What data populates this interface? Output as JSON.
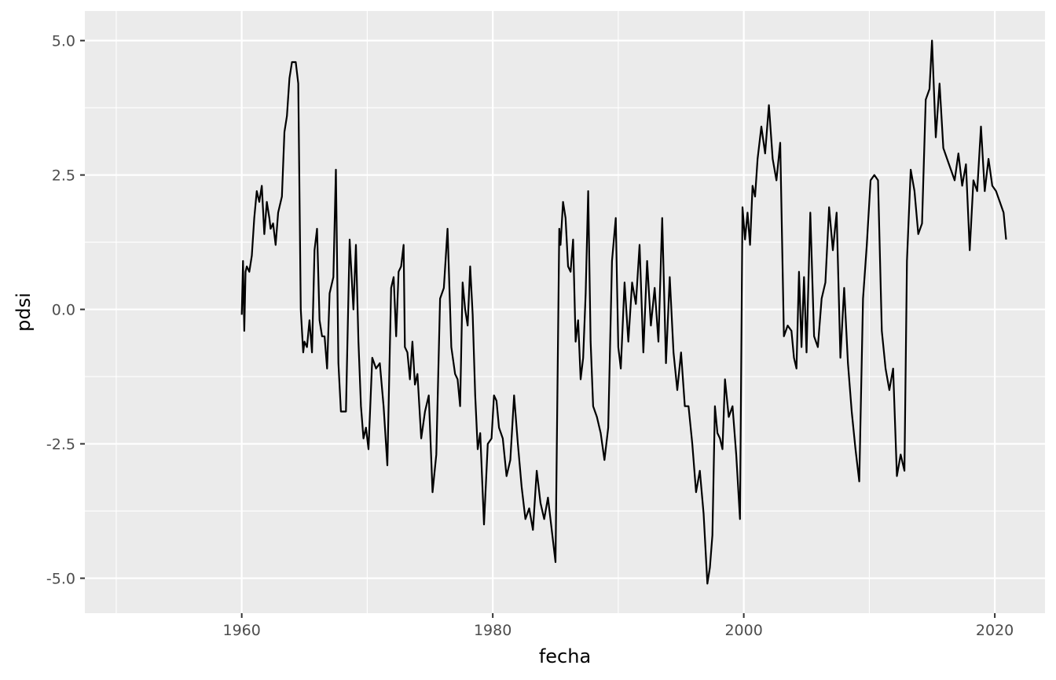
{
  "chart_data": {
    "type": "line",
    "title": "",
    "xlabel": "fecha",
    "ylabel": "pdsi",
    "xlim": [
      1947.5,
      2024.0
    ],
    "ylim": [
      -5.65,
      5.55
    ],
    "x_ticks": [
      1960,
      1980,
      2000,
      2020
    ],
    "x_minor_ticks": [
      1950,
      1970,
      1990,
      2010
    ],
    "x_tick_labels": [
      "1960",
      "1980",
      "2000",
      "2020"
    ],
    "y_ticks": [
      5.0,
      2.5,
      0.0,
      -2.5,
      -5.0
    ],
    "y_minor_ticks": [
      3.75,
      1.25,
      -1.25,
      -3.75
    ],
    "y_tick_labels": [
      "5.0",
      "2.5",
      "0.0",
      "-2.5",
      "-5.0"
    ],
    "grid": true,
    "legend": "none",
    "colors": {
      "panel": "#ebebeb",
      "grid": "#ffffff",
      "line": "#000000"
    },
    "series": [
      {
        "x": [
          1960.0,
          1960.1,
          1960.2,
          1960.3,
          1960.4,
          1960.6,
          1960.8,
          1961.0,
          1961.2,
          1961.4,
          1961.6,
          1961.8,
          1962.0,
          1962.2,
          1962.3,
          1962.5,
          1962.7,
          1962.9,
          1963.0,
          1963.2,
          1963.4,
          1963.6,
          1963.8,
          1964.0,
          1964.3,
          1964.5,
          1964.7,
          1964.9,
          1965.0,
          1965.2,
          1965.4,
          1965.6,
          1965.8,
          1966.0,
          1966.2,
          1966.4,
          1966.6,
          1966.8,
          1967.0,
          1967.3,
          1967.5,
          1967.7,
          1967.9,
          1968.0,
          1968.3,
          1968.6,
          1968.9,
          1969.1,
          1969.3,
          1969.5,
          1969.7,
          1969.9,
          1970.1,
          1970.4,
          1970.7,
          1971.0,
          1971.3,
          1971.6,
          1971.9,
          1972.1,
          1972.3,
          1972.5,
          1972.7,
          1972.9,
          1973.0,
          1973.2,
          1973.4,
          1973.6,
          1973.8,
          1974.0,
          1974.3,
          1974.6,
          1974.9,
          1975.2,
          1975.5,
          1975.8,
          1976.1,
          1976.4,
          1976.7,
          1977.0,
          1977.2,
          1977.4,
          1977.6,
          1977.8,
          1978.0,
          1978.2,
          1978.4,
          1978.6,
          1978.8,
          1979.0,
          1979.3,
          1979.6,
          1979.9,
          1980.1,
          1980.3,
          1980.5,
          1980.8,
          1981.1,
          1981.4,
          1981.7,
          1982.0,
          1982.3,
          1982.6,
          1982.9,
          1983.2,
          1983.5,
          1983.8,
          1984.1,
          1984.4,
          1984.7,
          1985.0,
          1985.3,
          1985.4,
          1985.6,
          1985.8,
          1986.0,
          1986.2,
          1986.4,
          1986.6,
          1986.8,
          1987.0,
          1987.2,
          1987.4,
          1987.6,
          1987.8,
          1988.0,
          1988.3,
          1988.6,
          1988.9,
          1989.2,
          1989.5,
          1989.8,
          1990.0,
          1990.2,
          1990.5,
          1990.8,
          1991.1,
          1991.4,
          1991.7,
          1992.0,
          1992.3,
          1992.6,
          1992.9,
          1993.2,
          1993.5,
          1993.8,
          1994.1,
          1994.4,
          1994.7,
          1995.0,
          1995.3,
          1995.6,
          1995.9,
          1996.2,
          1996.5,
          1996.8,
          1997.1,
          1997.3,
          1997.5,
          1997.7,
          1997.9,
          1998.1,
          1998.3,
          1998.5,
          1998.8,
          1999.1,
          1999.4,
          1999.7,
          1999.9,
          2000.1,
          2000.3,
          2000.5,
          2000.7,
          2000.9,
          2001.1,
          2001.4,
          2001.7,
          2002.0,
          2002.3,
          2002.6,
          2002.9,
          2003.2,
          2003.5,
          2003.8,
          2004.0,
          2004.2,
          2004.4,
          2004.6,
          2004.8,
          2005.0,
          2005.3,
          2005.6,
          2005.9,
          2006.2,
          2006.5,
          2006.8,
          2007.1,
          2007.4,
          2007.7,
          2008.0,
          2008.3,
          2008.6,
          2008.9,
          2009.2,
          2009.5,
          2009.8,
          2010.1,
          2010.4,
          2010.7,
          2011.0,
          2011.3,
          2011.6,
          2011.9,
          2012.2,
          2012.5,
          2012.8,
          2013.0,
          2013.3,
          2013.6,
          2013.9,
          2014.2,
          2014.5,
          2014.8,
          2015.0,
          2015.3,
          2015.6,
          2015.9,
          2016.2,
          2016.5,
          2016.8,
          2017.1,
          2017.4,
          2017.7,
          2018.0,
          2018.3,
          2018.6,
          2018.9,
          2019.2,
          2019.5,
          2019.8,
          2020.1,
          2020.4,
          2020.7,
          2020.9
        ],
        "y": [
          -0.1,
          0.9,
          -0.4,
          0.7,
          0.8,
          0.7,
          1.0,
          1.7,
          2.2,
          2.0,
          2.3,
          1.4,
          2.0,
          1.7,
          1.5,
          1.6,
          1.2,
          1.8,
          1.9,
          2.1,
          3.3,
          3.6,
          4.3,
          4.6,
          4.6,
          4.2,
          0.0,
          -0.8,
          -0.6,
          -0.7,
          -0.2,
          -0.8,
          1.1,
          1.5,
          -0.2,
          -0.5,
          -0.5,
          -1.1,
          0.3,
          0.6,
          2.6,
          -1.0,
          -1.9,
          -1.9,
          -1.9,
          1.3,
          0.0,
          1.2,
          -0.6,
          -1.8,
          -2.4,
          -2.2,
          -2.6,
          -0.9,
          -1.1,
          -1.0,
          -1.8,
          -2.9,
          0.4,
          0.6,
          -0.5,
          0.7,
          0.8,
          1.2,
          -0.7,
          -0.8,
          -1.3,
          -0.6,
          -1.4,
          -1.2,
          -2.4,
          -1.9,
          -1.6,
          -3.4,
          -2.7,
          0.2,
          0.4,
          1.5,
          -0.7,
          -1.2,
          -1.3,
          -1.8,
          0.5,
          0.0,
          -0.3,
          0.8,
          -0.1,
          -1.6,
          -2.6,
          -2.3,
          -4.0,
          -2.5,
          -2.4,
          -1.6,
          -1.7,
          -2.2,
          -2.4,
          -3.1,
          -2.8,
          -1.6,
          -2.5,
          -3.3,
          -3.9,
          -3.7,
          -4.1,
          -3.0,
          -3.6,
          -3.9,
          -3.5,
          -4.1,
          -4.7,
          1.5,
          1.2,
          2.0,
          1.7,
          0.8,
          0.7,
          1.3,
          -0.6,
          -0.2,
          -1.3,
          -0.9,
          0.3,
          2.2,
          -0.6,
          -1.8,
          -2.0,
          -2.3,
          -2.8,
          -2.2,
          0.9,
          1.7,
          -0.7,
          -1.1,
          0.5,
          -0.6,
          0.5,
          0.1,
          1.2,
          -0.8,
          0.9,
          -0.3,
          0.4,
          -0.6,
          1.7,
          -1.0,
          0.6,
          -0.8,
          -1.5,
          -0.8,
          -1.8,
          -1.8,
          -2.5,
          -3.4,
          -3.0,
          -3.8,
          -5.1,
          -4.8,
          -4.2,
          -1.8,
          -2.3,
          -2.4,
          -2.6,
          -1.3,
          -2.0,
          -1.8,
          -2.7,
          -3.9,
          1.9,
          1.3,
          1.8,
          1.2,
          2.3,
          2.1,
          2.8,
          3.4,
          2.9,
          3.8,
          2.8,
          2.4,
          3.1,
          -0.5,
          -0.3,
          -0.4,
          -0.9,
          -1.1,
          0.7,
          -0.7,
          0.6,
          -0.8,
          1.8,
          -0.5,
          -0.7,
          0.2,
          0.5,
          1.9,
          1.1,
          1.8,
          -0.9,
          0.4,
          -1.0,
          -1.9,
          -2.6,
          -3.2,
          0.2,
          1.2,
          2.4,
          2.5,
          2.4,
          -0.4,
          -1.1,
          -1.5,
          -1.1,
          -3.1,
          -2.7,
          -3.0,
          0.9,
          2.6,
          2.2,
          1.4,
          1.6,
          3.9,
          4.1,
          5.0,
          3.2,
          4.2,
          3.0,
          2.8,
          2.6,
          2.4,
          2.9,
          2.3,
          2.7,
          1.1,
          2.4,
          2.2,
          3.4,
          2.2,
          2.8,
          2.3,
          2.2,
          2.0,
          1.8,
          1.3
        ]
      }
    ]
  }
}
